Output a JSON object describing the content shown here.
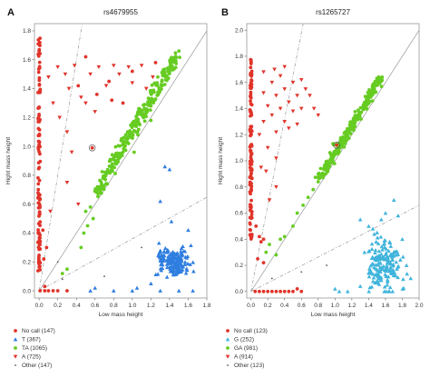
{
  "chart_data": [
    {
      "type": "scatter",
      "panel": "A",
      "title": "rs4679955",
      "xlabel": "Low mass height",
      "ylabel": "Hight mass height",
      "xlim": [
        -0.05,
        1.8
      ],
      "ylim": [
        -0.05,
        1.85
      ],
      "xticks": [
        "0.0",
        "0.2",
        "0.4",
        "0.6",
        "0.8",
        "1.0",
        "1.2",
        "1.4",
        "1.6",
        "1.8"
      ],
      "yticks": [
        "0.0",
        "0.2",
        "0.4",
        "0.6",
        "0.8",
        "1.0",
        "1.2",
        "1.4",
        "1.6",
        "1.8"
      ],
      "xtick_values": [
        0,
        0.2,
        0.4,
        0.6,
        0.8,
        1.0,
        1.2,
        1.4,
        1.6,
        1.8
      ],
      "ytick_values": [
        0,
        0.2,
        0.4,
        0.6,
        0.8,
        1.0,
        1.2,
        1.4,
        1.6,
        1.8
      ],
      "guide_lines": [
        {
          "style": "dashed",
          "slope": 4.0
        },
        {
          "style": "solid",
          "slope": 1.0
        },
        {
          "style": "dashed",
          "slope": 0.36
        }
      ],
      "highlight_circle": {
        "x": 0.57,
        "y": 0.99
      },
      "legend": [
        {
          "label": "No call (147)",
          "marker": "circle",
          "color": "#e0342a"
        },
        {
          "label": "T (367)",
          "marker": "triangle-up",
          "color": "#2f7ee0"
        },
        {
          "label": "TA (1065)",
          "marker": "circle",
          "color": "#66cc22"
        },
        {
          "label": "A (725)",
          "marker": "triangle-down",
          "color": "#e0342a"
        },
        {
          "label": "Other (147)",
          "marker": "dot",
          "color": "#555555"
        }
      ],
      "series": [
        {
          "label_ref": 0,
          "marker": "circle",
          "color": "#e0342a",
          "points": [
            [
              0.1,
              0.0
            ],
            [
              0.15,
              0.0
            ],
            [
              0.2,
              0.0
            ],
            [
              0.3,
              0.0
            ],
            [
              0.06,
              0.03
            ],
            [
              0.04,
              0.42
            ],
            [
              0.05,
              0.22
            ],
            [
              0.08,
              0.3
            ],
            [
              0.01,
              0.0
            ],
            [
              0.06,
              0.0
            ],
            [
              0.5,
              1.62
            ],
            [
              0.75,
              1.45
            ],
            [
              0.62,
              1.36
            ],
            [
              0.9,
              1.3
            ],
            [
              1.25,
              1.58
            ],
            [
              0.42,
              1.42
            ],
            [
              1.0,
              1.52
            ],
            [
              0.78,
              1.32
            ],
            [
              0.57,
              0.99
            ]
          ]
        },
        {
          "label_ref": 1,
          "marker": "triangle-up",
          "color": "#2f7ee0",
          "points": [
            [
              0.55,
              0.0
            ],
            [
              0.6,
              0.02
            ],
            [
              0.8,
              0.0
            ],
            [
              1.0,
              0.0
            ],
            [
              1.05,
              0.02
            ],
            [
              1.3,
              0.0
            ],
            [
              1.65,
              0.0
            ],
            [
              1.5,
              0.0
            ],
            [
              1.35,
              0.86
            ],
            [
              1.4,
              0.84
            ],
            [
              1.3,
              0.62
            ],
            [
              1.42,
              0.48
            ],
            [
              1.6,
              0.42
            ],
            [
              1.5,
              0.15
            ],
            [
              1.2,
              0.05
            ]
          ]
        },
        {
          "label_ref": 2,
          "marker": "circle",
          "color": "#66cc22",
          "points": [
            [
              0.48,
              0.4
            ],
            [
              0.5,
              0.55
            ],
            [
              0.52,
              0.45
            ],
            [
              0.45,
              0.3
            ],
            [
              0.55,
              0.58
            ],
            [
              0.62,
              0.68
            ],
            [
              0.66,
              0.72
            ],
            [
              0.7,
              0.78
            ],
            [
              0.74,
              0.82
            ],
            [
              0.78,
              0.84
            ],
            [
              0.82,
              0.88
            ],
            [
              0.86,
              0.92
            ],
            [
              0.9,
              0.96
            ],
            [
              0.92,
              1.0
            ],
            [
              0.96,
              1.02
            ],
            [
              1.0,
              1.06
            ],
            [
              1.04,
              1.1
            ],
            [
              1.08,
              1.15
            ],
            [
              1.12,
              1.2
            ],
            [
              1.16,
              1.24
            ],
            [
              1.2,
              1.28
            ],
            [
              1.24,
              1.32
            ],
            [
              1.28,
              1.36
            ],
            [
              1.32,
              1.42
            ],
            [
              1.36,
              1.46
            ],
            [
              1.4,
              1.52
            ],
            [
              1.46,
              1.6
            ],
            [
              1.5,
              1.66
            ],
            [
              0.95,
              1.1
            ],
            [
              1.0,
              1.16
            ],
            [
              1.06,
              1.08
            ],
            [
              0.88,
              1.04
            ],
            [
              1.14,
              1.22
            ],
            [
              1.2,
              1.18
            ],
            [
              1.3,
              1.4
            ],
            [
              1.02,
              0.96
            ],
            [
              0.8,
              0.92
            ],
            [
              0.3,
              0.15
            ],
            [
              0.25,
              0.12
            ],
            [
              0.58,
              0.5
            ]
          ]
        },
        {
          "label_ref": 3,
          "marker": "triangle-down",
          "color": "#e0342a",
          "points": [
            [
              0.2,
              1.55
            ],
            [
              0.28,
              1.5
            ],
            [
              0.38,
              1.56
            ],
            [
              0.55,
              1.5
            ],
            [
              0.64,
              1.55
            ],
            [
              0.72,
              1.42
            ],
            [
              0.86,
              1.5
            ],
            [
              0.96,
              1.55
            ],
            [
              1.1,
              1.56
            ],
            [
              1.22,
              1.48
            ],
            [
              0.32,
              1.4
            ],
            [
              0.45,
              1.34
            ],
            [
              0.6,
              1.24
            ],
            [
              0.3,
              1.1
            ],
            [
              0.35,
              0.96
            ],
            [
              0.22,
              1.2
            ],
            [
              0.5,
              1.3
            ],
            [
              1.0,
              1.44
            ],
            [
              0.1,
              1.48
            ],
            [
              0.3,
              0.75
            ],
            [
              0.42,
              0.6
            ],
            [
              0.12,
              0.55
            ],
            [
              0.15,
              1.3
            ],
            [
              0.8,
              1.56
            ],
            [
              1.15,
              1.4
            ]
          ]
        },
        {
          "label_ref": 4,
          "marker": "dot",
          "color": "#555555",
          "points": [
            [
              0.2,
              0.2
            ],
            [
              0.25,
              0.08
            ],
            [
              0.7,
              0.1
            ],
            [
              1.1,
              0.3
            ]
          ]
        }
      ],
      "dense_clusters": [
        {
          "series_ref": 2,
          "from": [
            0.62,
            0.68
          ],
          "to": [
            1.48,
            1.64
          ],
          "spread": 0.035
        },
        {
          "series_ref": 1,
          "center": [
            1.45,
            0.2
          ],
          "spread": [
            0.13,
            0.07
          ]
        },
        {
          "series_ref": 0,
          "x_column": 0.0,
          "y_range": [
            0.12,
            1.75
          ]
        }
      ]
    },
    {
      "type": "scatter",
      "panel": "B",
      "title": "rs1265727",
      "xlabel": "Low mass height",
      "ylabel": "Hight mass height",
      "xlim": [
        -0.05,
        2.0
      ],
      "ylim": [
        -0.05,
        2.05
      ],
      "xticks": [
        "0.0",
        "0.2",
        "0.4",
        "0.6",
        "0.8",
        "1.0",
        "1.2",
        "1.4",
        "1.6",
        "1.8",
        "2.0"
      ],
      "yticks": [
        "0.0",
        "0.2",
        "0.4",
        "0.6",
        "0.8",
        "1.0",
        "1.2",
        "1.4",
        "1.6",
        "1.8",
        "2.0"
      ],
      "xtick_values": [
        0,
        0.2,
        0.4,
        0.6,
        0.8,
        1.0,
        1.2,
        1.4,
        1.6,
        1.8,
        2.0
      ],
      "ytick_values": [
        0,
        0.2,
        0.4,
        0.6,
        0.8,
        1.0,
        1.2,
        1.4,
        1.6,
        1.8,
        2.0
      ],
      "guide_lines": [
        {
          "style": "dashed",
          "slope": 3.3
        },
        {
          "style": "solid",
          "slope": 1.0
        },
        {
          "style": "dashed",
          "slope": 0.33
        }
      ],
      "highlight_circle": {
        "x": 1.02,
        "y": 1.12
      },
      "legend": [
        {
          "label": "No call (123)",
          "marker": "circle",
          "color": "#e0342a"
        },
        {
          "label": "G (252)",
          "marker": "triangle-up",
          "color": "#3fb4dc"
        },
        {
          "label": "GA (981)",
          "marker": "circle",
          "color": "#66cc22"
        },
        {
          "label": "A (914)",
          "marker": "triangle-down",
          "color": "#e0342a"
        },
        {
          "label": "Other (123)",
          "marker": "dot",
          "color": "#555555"
        }
      ],
      "series": [
        {
          "label_ref": 0,
          "marker": "circle",
          "color": "#e0342a",
          "points": [
            [
              0.05,
              0.0
            ],
            [
              0.1,
              0.0
            ],
            [
              0.15,
              0.0
            ],
            [
              0.2,
              0.0
            ],
            [
              0.25,
              0.0
            ],
            [
              0.3,
              0.0
            ],
            [
              0.35,
              0.0
            ],
            [
              0.4,
              0.0
            ],
            [
              0.45,
              0.0
            ],
            [
              0.5,
              0.0
            ],
            [
              0.6,
              0.0
            ],
            [
              0.55,
              0.02
            ],
            [
              0.1,
              0.42
            ],
            [
              0.12,
              0.38
            ],
            [
              0.15,
              0.4
            ],
            [
              0.06,
              0.5
            ],
            [
              0.08,
              0.25
            ],
            [
              0.15,
              0.22
            ],
            [
              1.02,
              1.12
            ]
          ]
        },
        {
          "label_ref": 1,
          "marker": "triangle-up",
          "color": "#3fb4dc",
          "points": [
            [
              1.0,
              0.02
            ],
            [
              1.05,
              0.0
            ],
            [
              1.15,
              0.0
            ],
            [
              1.3,
              0.55
            ],
            [
              1.4,
              0.5
            ],
            [
              1.5,
              0.45
            ],
            [
              1.6,
              0.6
            ],
            [
              1.7,
              0.7
            ],
            [
              1.75,
              0.58
            ],
            [
              1.8,
              0.4
            ],
            [
              1.85,
              0.2
            ],
            [
              1.9,
              0.1
            ],
            [
              1.3,
              0.04
            ],
            [
              1.35,
              0.3
            ],
            [
              1.45,
              0.48
            ],
            [
              1.55,
              0.55
            ],
            [
              1.65,
              0.38
            ],
            [
              1.72,
              0.12
            ],
            [
              1.5,
              0.08
            ],
            [
              1.62,
              0.05
            ]
          ]
        },
        {
          "label_ref": 2,
          "marker": "circle",
          "color": "#66cc22",
          "points": [
            [
              0.3,
              0.28
            ],
            [
              0.4,
              0.42
            ],
            [
              0.5,
              0.5
            ],
            [
              0.55,
              0.6
            ],
            [
              0.62,
              0.66
            ],
            [
              0.68,
              0.72
            ],
            [
              0.74,
              0.78
            ],
            [
              0.8,
              0.84
            ],
            [
              0.86,
              0.9
            ],
            [
              0.92,
              0.98
            ],
            [
              0.98,
              1.04
            ],
            [
              1.04,
              1.1
            ],
            [
              1.1,
              1.16
            ],
            [
              1.16,
              1.22
            ],
            [
              1.22,
              1.28
            ],
            [
              1.28,
              1.34
            ],
            [
              1.34,
              1.4
            ],
            [
              1.4,
              1.48
            ],
            [
              1.46,
              1.54
            ],
            [
              1.52,
              1.6
            ],
            [
              1.56,
              1.64
            ],
            [
              0.18,
              0.3
            ],
            [
              0.22,
              0.36
            ],
            [
              0.35,
              0.4
            ]
          ]
        },
        {
          "label_ref": 3,
          "marker": "triangle-down",
          "color": "#e0342a",
          "points": [
            [
              0.1,
              1.2
            ],
            [
              0.15,
              1.3
            ],
            [
              0.2,
              1.42
            ],
            [
              0.25,
              1.35
            ],
            [
              0.3,
              1.5
            ],
            [
              0.35,
              1.4
            ],
            [
              0.4,
              1.55
            ],
            [
              0.45,
              1.45
            ],
            [
              0.5,
              1.6
            ],
            [
              0.55,
              1.5
            ],
            [
              0.6,
              1.4
            ],
            [
              0.65,
              1.55
            ],
            [
              0.7,
              1.5
            ],
            [
              0.75,
              1.4
            ],
            [
              0.8,
              1.35
            ],
            [
              0.3,
              1.22
            ],
            [
              0.2,
              1.1
            ],
            [
              0.4,
              1.3
            ],
            [
              0.5,
              1.38
            ],
            [
              0.6,
              1.62
            ],
            [
              0.35,
              1.65
            ],
            [
              0.25,
              1.6
            ],
            [
              0.15,
              1.52
            ],
            [
              0.45,
              1.25
            ],
            [
              0.55,
              1.28
            ],
            [
              0.3,
              1.02
            ],
            [
              0.12,
              0.95
            ],
            [
              0.18,
              0.92
            ],
            [
              0.22,
              0.7
            ],
            [
              0.3,
              0.8
            ],
            [
              0.28,
              1.7
            ],
            [
              0.4,
              1.72
            ],
            [
              0.15,
              1.68
            ]
          ]
        },
        {
          "label_ref": 4,
          "marker": "dot",
          "color": "#555555",
          "points": [
            [
              0.25,
              0.1
            ],
            [
              0.6,
              0.15
            ],
            [
              0.9,
              0.2
            ]
          ]
        }
      ],
      "dense_clusters": [
        {
          "series_ref": 2,
          "from": [
            0.8,
            0.85
          ],
          "to": [
            1.55,
            1.64
          ],
          "spread": 0.03
        },
        {
          "series_ref": 1,
          "center": [
            1.58,
            0.2
          ],
          "spread": [
            0.15,
            0.14
          ]
        },
        {
          "series_ref": 0,
          "x_column": 0.0,
          "y_range": [
            0.4,
            1.78
          ]
        }
      ]
    }
  ]
}
